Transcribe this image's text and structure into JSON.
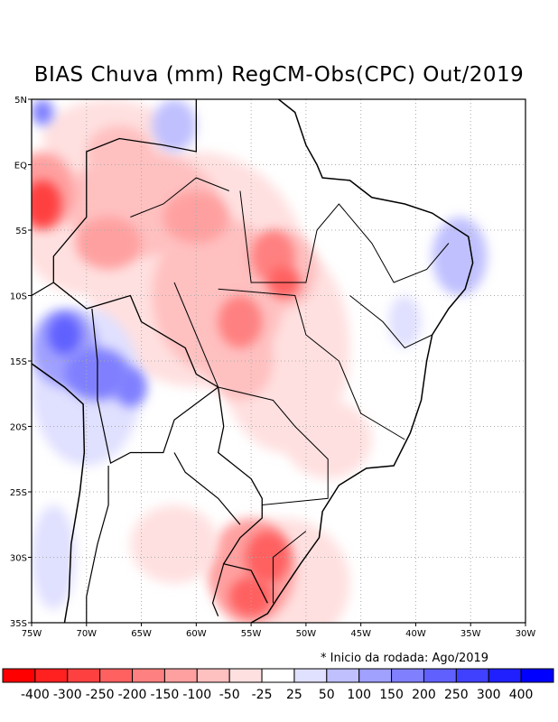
{
  "title": "BIAS Chuva (mm) RegCM-Obs(CPC) Out/2019",
  "note": "* Inicio da rodada: Ago/2019",
  "map": {
    "lon_range": [
      -75,
      -30
    ],
    "lat_range": [
      -35,
      5
    ],
    "x_ticks": [
      "75W",
      "70W",
      "65W",
      "60W",
      "55W",
      "50W",
      "45W",
      "40W",
      "35W",
      "30W"
    ],
    "y_ticks": [
      "5N",
      "EQ",
      "5S",
      "10S",
      "15S",
      "20S",
      "25S",
      "30S",
      "35S"
    ]
  },
  "colorbar": {
    "colors": [
      "#ff0000",
      "#ff2020",
      "#ff4040",
      "#ff6060",
      "#ff8080",
      "#ffa0a0",
      "#ffc0c0",
      "#ffe0e0",
      "#ffffff",
      "#e0e0ff",
      "#c0c0ff",
      "#a0a0ff",
      "#8080ff",
      "#6060ff",
      "#4040ff",
      "#2020ff",
      "#0000ff"
    ],
    "labels": [
      "-400",
      "-300",
      "-250",
      "-200",
      "-150",
      "-100",
      "-50",
      "-25",
      "25",
      "50",
      "100",
      "150",
      "200",
      "250",
      "300",
      "400"
    ]
  }
}
